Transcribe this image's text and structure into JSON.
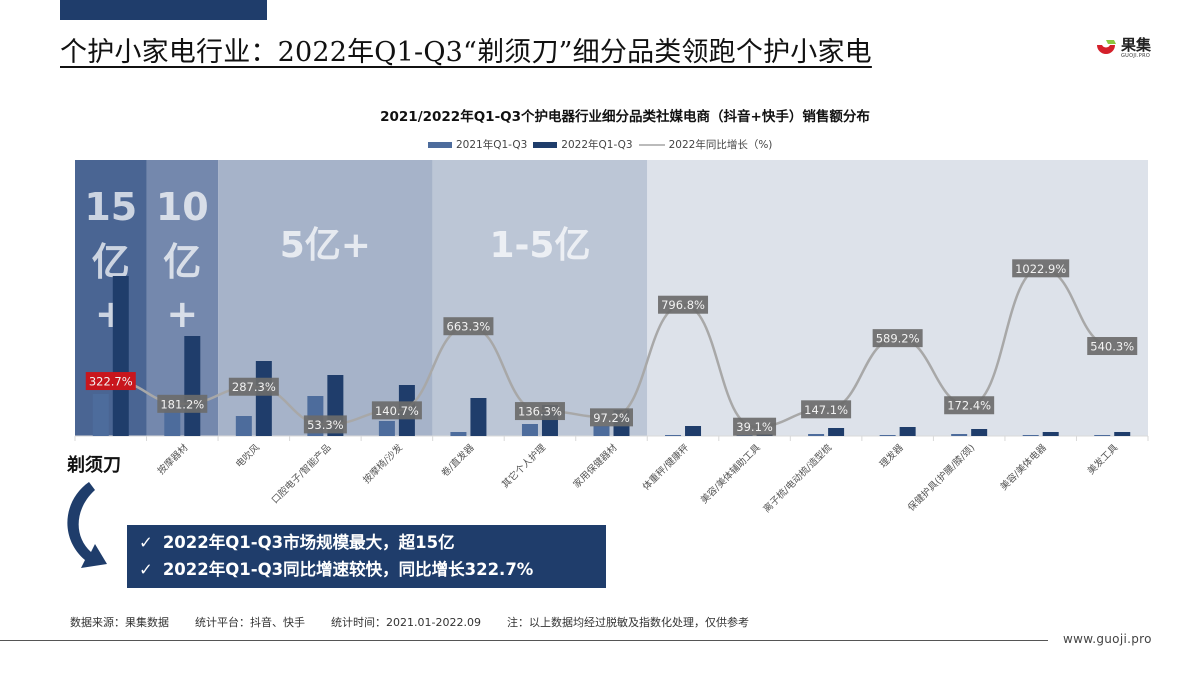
{
  "header": {
    "title": "个护小家电行业：2022年Q1-Q3“剃须刀”细分品类领跑个护小家电",
    "logo_cn": "果集",
    "logo_en": "GUOJI.PRO"
  },
  "colors": {
    "series_2021": "#4d6c9c",
    "series_2022": "#1f3d6b",
    "line": "#a8a8a8",
    "label_bg": "#6b6b6b",
    "highlight_label_bg": "#c8161d",
    "band_15": "#4a6593",
    "band_10": "#7488ad",
    "band_5": "#a6b3c9",
    "band_1_5": "#bcc6d6",
    "band_rest": "#dde2ea",
    "callout_bg": "#1f3d6b"
  },
  "chart_data": {
    "type": "bar",
    "title": "2021/2022年Q1-Q3个护电器行业细分品类社媒电商（抖音+快手）销售额分布",
    "xlabel": "",
    "ylabel": "",
    "legend": [
      "2021年Q1-Q3",
      "2022年Q1-Q3",
      "2022年同比增长（%)"
    ],
    "legend_position": "top",
    "grid": false,
    "categories": [
      "剃须刀",
      "按摩器材",
      "电吹风",
      "口腔电子/智能产品",
      "按摩椅/沙发",
      "卷/直发器",
      "其它个人护理",
      "家用保健器材",
      "体重秤/健康秤",
      "美容/美体辅助工具",
      "离子梳/电动梳/造型梳",
      "理发器",
      "保健护具(护腰/膝/颈)",
      "美容/美体电器",
      "美发工具"
    ],
    "series": [
      {
        "name": "2021年Q1-Q3",
        "type": "bar",
        "values": [
          42,
          28,
          20,
          40,
          15,
          4,
          12,
          10,
          1,
          0.5,
          2,
          1,
          2,
          1,
          1
        ]
      },
      {
        "name": "2022年Q1-Q3",
        "type": "bar",
        "values": [
          160,
          100,
          75,
          61,
          51,
          38,
          31,
          26,
          10,
          2,
          8,
          9,
          7,
          4,
          4
        ]
      },
      {
        "name": "2022年同比增长（%)",
        "type": "line",
        "values": [
          322.7,
          181.2,
          287.3,
          53.3,
          140.7,
          663.3,
          136.3,
          97.2,
          796.8,
          39.1,
          147.1,
          589.2,
          172.4,
          1022.9,
          540.3
        ]
      }
    ],
    "growth_labels": [
      "322.7%",
      "181.2%",
      "287.3%",
      "53.3%",
      "140.7%",
      "663.3%",
      "136.3%",
      "97.2%",
      "796.8%",
      "39.1%",
      "147.1%",
      "589.2%",
      "172.4%",
      "1022.9%",
      "540.3%"
    ],
    "tier_bands": [
      {
        "label_lines": [
          "15",
          "亿",
          "+"
        ],
        "from": 0,
        "to": 0
      },
      {
        "label_lines": [
          "10",
          "亿",
          "+"
        ],
        "from": 1,
        "to": 1
      },
      {
        "label": "5亿+",
        "from": 2,
        "to": 4
      },
      {
        "label": "1-5亿",
        "from": 5,
        "to": 7
      },
      {
        "label": "",
        "from": 8,
        "to": 14
      }
    ],
    "note": "bar values are relative (indexed) heights; no y-axis shown"
  },
  "annotations": {
    "razor_label": "剃须刀",
    "callout": [
      {
        "check": "✓",
        "text": "2022年Q1-Q3市场规模最大，超15亿"
      },
      {
        "check": "✓",
        "text": "2022年Q1-Q3同比增速较快，同比增长322.7%"
      }
    ]
  },
  "footer": {
    "source": "数据来源：果集数据",
    "platform": "统计平台：抖音、快手",
    "period": "统计时间：2021.01-2022.09",
    "note": "注：以上数据均经过脱敏及指数化处理，仅供参考",
    "url": "www.guoji.pro"
  }
}
